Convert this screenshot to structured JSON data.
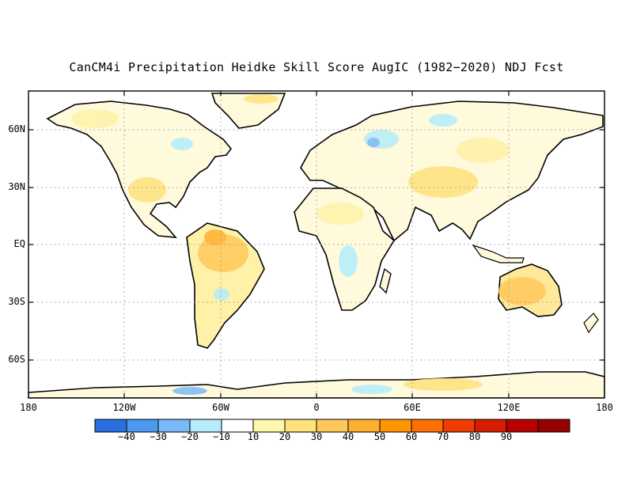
{
  "title": "CanCM4i Precipitation Heidke Skill Score AugIC (1982−2020) NDJ Fcst",
  "map": {
    "lat_labels": [
      "60N",
      "30N",
      "EQ",
      "30S",
      "60S"
    ],
    "lon_labels": [
      "180",
      "120W",
      "60W",
      "0",
      "60E",
      "120E",
      "180"
    ],
    "lat_range": [
      -80,
      80
    ],
    "lon_range": [
      -180,
      180
    ],
    "gridlines": "dotted",
    "land_colors_dominant": [
      "#ffffff",
      "#fff8b0",
      "#ffe060",
      "#ffc040",
      "#b8f0f8",
      "#78c0f8"
    ]
  },
  "colorbar": {
    "colors": [
      "#2a6fe0",
      "#4a98f0",
      "#7ab8f8",
      "#b4ecfa",
      "#ffffff",
      "#fff7ae",
      "#ffe27c",
      "#ffc85a",
      "#ffb030",
      "#ff9600",
      "#ff6e00",
      "#f03c00",
      "#d81c00",
      "#b80000",
      "#980000"
    ],
    "labels": [
      "−40",
      "−30",
      "−20",
      "−10",
      "10",
      "20",
      "30",
      "40",
      "50",
      "60",
      "70",
      "80",
      "90"
    ]
  }
}
